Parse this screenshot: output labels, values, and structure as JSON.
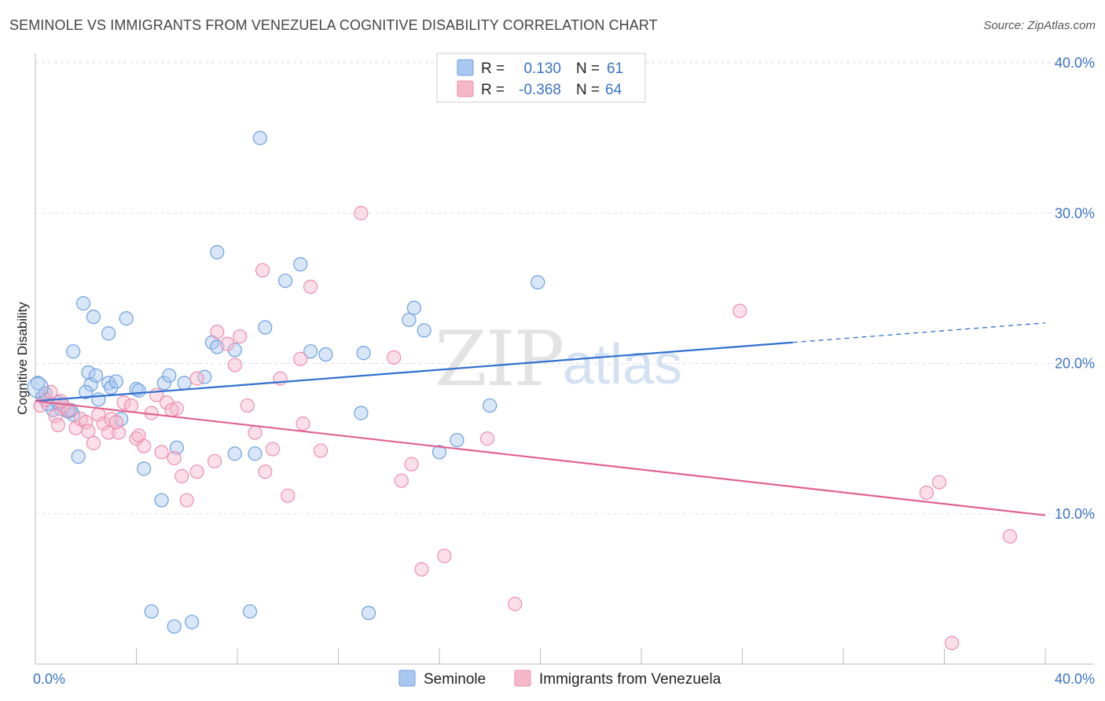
{
  "title": "SEMINOLE VS IMMIGRANTS FROM VENEZUELA COGNITIVE DISABILITY CORRELATION CHART",
  "source": "Source: ZipAtlas.com",
  "watermark": {
    "zip": "ZIP",
    "atlas": "atlas"
  },
  "legend": {
    "rows": [
      {
        "r_label": "R =",
        "r_value": "0.130",
        "n_label": "N =",
        "n_value": "61",
        "color": "#a9c8ef"
      },
      {
        "r_label": "R =",
        "r_value": "-0.368",
        "n_label": "N =",
        "n_value": "64",
        "color": "#f5b8cb"
      }
    ]
  },
  "chart_data": {
    "type": "scatter",
    "ylabel": "Cognitive Disability",
    "xlabel": "",
    "xlim": [
      0,
      40
    ],
    "ylim": [
      0,
      40
    ],
    "x_tick_labels": {
      "left": "0.0%",
      "right": "40.0%"
    },
    "y_ticks": [
      {
        "value": 10,
        "label": "10.0%"
      },
      {
        "value": 20,
        "label": "20.0%"
      },
      {
        "value": 30,
        "label": "30.0%"
      },
      {
        "value": 40,
        "label": "40.0%"
      }
    ],
    "grid": "horizontal dashed",
    "legend_position": "top-center",
    "series": [
      {
        "name": "Seminole",
        "color": "#6fa0df",
        "fill": "#a9c8ef",
        "line_color": "#2f6fce",
        "trend": {
          "x0": 0,
          "y0": 17.5,
          "x1": 30,
          "y1": 21.4,
          "dash_to_x": 40,
          "dash_to_y": 22.7
        },
        "points": [
          [
            0.1,
            18.7
          ],
          [
            0.3,
            17.8
          ],
          [
            0.4,
            18.0
          ],
          [
            0.5,
            17.3
          ],
          [
            0.7,
            16.9
          ],
          [
            0.9,
            17.4
          ],
          [
            1.0,
            17.0
          ],
          [
            1.1,
            17.2
          ],
          [
            1.3,
            16.8
          ],
          [
            1.5,
            16.6
          ],
          [
            1.5,
            20.8
          ],
          [
            1.7,
            13.8
          ],
          [
            1.9,
            24.0
          ],
          [
            2.1,
            19.4
          ],
          [
            2.2,
            18.6
          ],
          [
            2.3,
            23.1
          ],
          [
            2.4,
            19.2
          ],
          [
            2.5,
            17.6
          ],
          [
            2.9,
            18.7
          ],
          [
            2.9,
            22.0
          ],
          [
            3.0,
            18.4
          ],
          [
            3.2,
            18.8
          ],
          [
            3.4,
            16.3
          ],
          [
            3.6,
            23.0
          ],
          [
            4.0,
            18.3
          ],
          [
            4.1,
            18.2
          ],
          [
            4.3,
            13.0
          ],
          [
            5.0,
            10.9
          ],
          [
            5.1,
            18.7
          ],
          [
            5.3,
            19.2
          ],
          [
            5.6,
            14.4
          ],
          [
            5.9,
            18.7
          ],
          [
            6.7,
            19.1
          ],
          [
            7.0,
            21.4
          ],
          [
            7.2,
            21.1
          ],
          [
            7.2,
            27.4
          ],
          [
            7.9,
            20.9
          ],
          [
            7.9,
            14.0
          ],
          [
            8.5,
            3.5
          ],
          [
            8.7,
            14.0
          ],
          [
            8.9,
            35.0
          ],
          [
            9.1,
            22.4
          ],
          [
            9.9,
            25.5
          ],
          [
            10.5,
            26.6
          ],
          [
            10.9,
            20.8
          ],
          [
            11.5,
            20.6
          ],
          [
            12.9,
            16.7
          ],
          [
            13.0,
            20.7
          ],
          [
            13.2,
            3.4
          ],
          [
            14.8,
            22.9
          ],
          [
            15.0,
            23.7
          ],
          [
            15.4,
            22.2
          ],
          [
            16.0,
            14.1
          ],
          [
            16.7,
            14.9
          ],
          [
            18.0,
            17.2
          ],
          [
            19.9,
            25.4
          ],
          [
            4.6,
            3.5
          ],
          [
            5.5,
            2.5
          ],
          [
            6.2,
            2.8
          ],
          [
            2.0,
            18.1
          ],
          [
            1.4,
            16.9
          ]
        ]
      },
      {
        "name": "Immigrants from Venezuela",
        "color": "#ee8fad",
        "fill": "#f5b8cb",
        "line_color": "#e0628e",
        "trend": {
          "x0": 0,
          "y0": 17.5,
          "x1": 40,
          "y1": 9.9
        },
        "points": [
          [
            0.2,
            17.2
          ],
          [
            0.4,
            17.6
          ],
          [
            0.6,
            18.1
          ],
          [
            0.8,
            16.5
          ],
          [
            0.9,
            15.9
          ],
          [
            1.1,
            17.2
          ],
          [
            1.3,
            16.9
          ],
          [
            1.6,
            15.7
          ],
          [
            1.8,
            16.3
          ],
          [
            2.0,
            16.1
          ],
          [
            2.1,
            15.5
          ],
          [
            2.3,
            14.7
          ],
          [
            2.5,
            16.6
          ],
          [
            2.7,
            16.0
          ],
          [
            2.9,
            15.4
          ],
          [
            3.0,
            16.3
          ],
          [
            3.3,
            15.4
          ],
          [
            3.5,
            17.4
          ],
          [
            3.8,
            17.2
          ],
          [
            4.0,
            15.0
          ],
          [
            4.1,
            15.2
          ],
          [
            4.3,
            14.5
          ],
          [
            4.6,
            16.7
          ],
          [
            4.8,
            17.9
          ],
          [
            5.0,
            14.1
          ],
          [
            5.2,
            17.4
          ],
          [
            5.5,
            13.7
          ],
          [
            5.6,
            17.0
          ],
          [
            5.8,
            12.5
          ],
          [
            6.0,
            10.9
          ],
          [
            6.4,
            12.8
          ],
          [
            7.1,
            13.5
          ],
          [
            7.2,
            22.1
          ],
          [
            7.6,
            21.3
          ],
          [
            7.9,
            19.9
          ],
          [
            8.1,
            21.8
          ],
          [
            8.4,
            17.2
          ],
          [
            8.7,
            15.4
          ],
          [
            9.0,
            26.2
          ],
          [
            9.1,
            12.8
          ],
          [
            9.4,
            14.3
          ],
          [
            9.7,
            19.0
          ],
          [
            10.0,
            11.2
          ],
          [
            10.5,
            20.3
          ],
          [
            10.6,
            16.0
          ],
          [
            10.9,
            25.1
          ],
          [
            11.3,
            14.2
          ],
          [
            12.9,
            30.0
          ],
          [
            14.2,
            20.4
          ],
          [
            14.5,
            12.2
          ],
          [
            14.9,
            13.3
          ],
          [
            15.3,
            6.3
          ],
          [
            16.2,
            7.2
          ],
          [
            17.9,
            15.0
          ],
          [
            19.0,
            4.0
          ],
          [
            27.9,
            23.5
          ],
          [
            35.3,
            11.4
          ],
          [
            35.8,
            12.1
          ],
          [
            36.3,
            1.4
          ],
          [
            38.6,
            8.5
          ],
          [
            6.4,
            19.0
          ],
          [
            3.2,
            16.1
          ],
          [
            1.0,
            17.5
          ],
          [
            5.4,
            16.9
          ]
        ]
      }
    ]
  },
  "bottom_legend": [
    {
      "label": "Seminole",
      "color": "#a9c8ef"
    },
    {
      "label": "Immigrants from Venezuela",
      "color": "#f5b8cb"
    }
  ]
}
